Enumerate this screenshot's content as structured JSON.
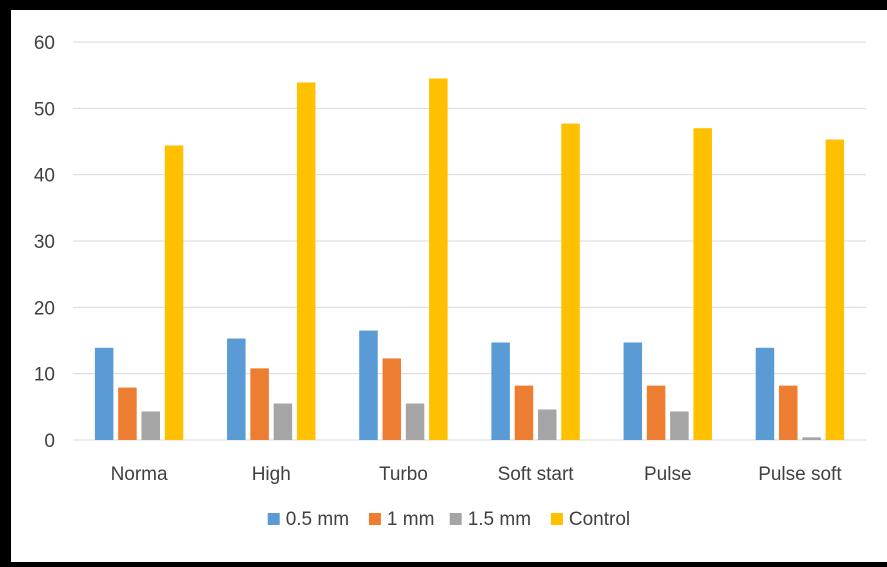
{
  "chart_data": {
    "type": "bar",
    "title": "",
    "xlabel": "",
    "ylabel": "",
    "ylim": [
      0,
      60
    ],
    "yticks": [
      0,
      10,
      20,
      30,
      40,
      50,
      60
    ],
    "grid": true,
    "legend_position": "bottom",
    "categories": [
      "Norma",
      "High",
      "Turbo",
      "Soft start",
      "Pulse",
      "Pulse soft"
    ],
    "series": [
      {
        "name": "0.5 mm",
        "color": "#5b9bd5",
        "values": [
          13.9,
          15.3,
          16.5,
          14.7,
          14.7,
          13.9
        ]
      },
      {
        "name": "1 mm",
        "color": "#ed7d31",
        "values": [
          7.9,
          10.8,
          12.3,
          8.2,
          8.2,
          8.2
        ]
      },
      {
        "name": "1.5 mm",
        "color": "#a5a5a5",
        "values": [
          4.3,
          5.5,
          5.5,
          4.6,
          4.3,
          0.4
        ]
      },
      {
        "name": "Control",
        "color": "#ffc000",
        "values": [
          44.4,
          53.9,
          54.5,
          47.7,
          47.0,
          45.3
        ]
      }
    ]
  }
}
